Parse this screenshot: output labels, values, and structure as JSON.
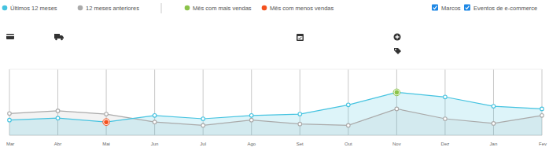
{
  "chart_data": {
    "type": "line",
    "categories": [
      "Mar",
      "Abr",
      "Mai",
      "Jun",
      "Jul",
      "Ago",
      "Set",
      "Out",
      "Nov",
      "Dez",
      "Jan",
      "Fev"
    ],
    "series": [
      {
        "name": "Últimos 12 meses",
        "color": "#45c3e0",
        "marker": "circle",
        "values": [
          23,
          26,
          20,
          30,
          25,
          30,
          32,
          46,
          65,
          58,
          44,
          40
        ]
      },
      {
        "name": "12 meses anteriores",
        "color": "#aaaaaa",
        "marker": "circle",
        "values": [
          33,
          37,
          32,
          20,
          15,
          23,
          17,
          15,
          40,
          25,
          18,
          30
        ]
      }
    ],
    "highlights": {
      "max": {
        "label": "Mês com mais vendas",
        "color": "#8bc34a"
      },
      "min": {
        "label": "Mês com menos vendas",
        "color": "#f4511e"
      }
    },
    "controls": [
      "Marcos",
      "Eventos de e-commerce"
    ],
    "ylim": [
      0,
      100
    ],
    "grid": true,
    "legend": "top-left",
    "tick_labels": "x"
  }
}
